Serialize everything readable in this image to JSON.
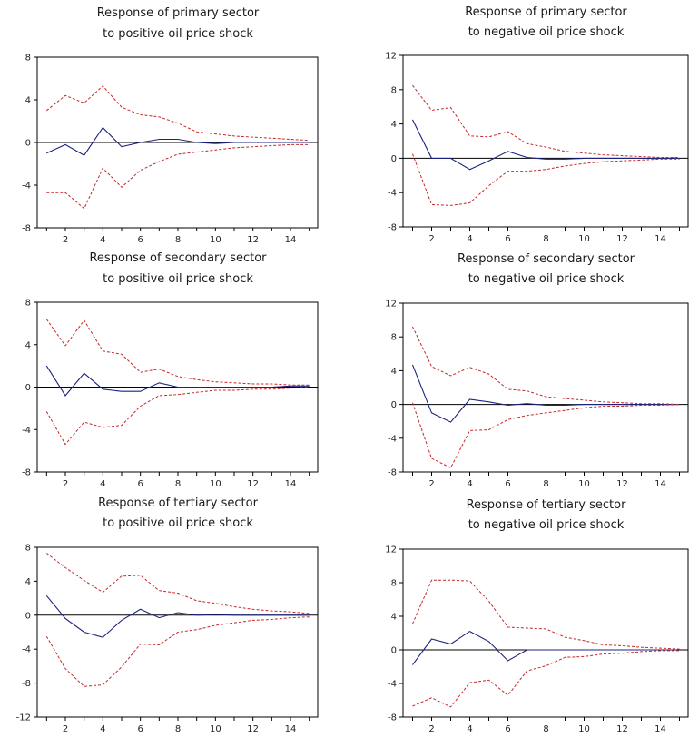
{
  "chart_data": [
    {
      "type": "line",
      "title": [
        "Response of primary sector",
        "to positive oil price shock"
      ],
      "x": [
        1,
        2,
        3,
        4,
        5,
        6,
        7,
        8,
        9,
        10,
        11,
        12,
        13,
        14,
        15
      ],
      "xticks": [
        2,
        4,
        6,
        8,
        10,
        12,
        14
      ],
      "ylim": [
        -8,
        8
      ],
      "yticks": [
        -8,
        -4,
        0,
        4,
        8
      ],
      "series": [
        {
          "role": "response",
          "values": [
            -1.0,
            -0.2,
            -1.2,
            1.4,
            -0.4,
            0.0,
            0.3,
            0.3,
            0.0,
            -0.1,
            0.0,
            0.0,
            0.0,
            0.0,
            0.0
          ]
        },
        {
          "role": "upper",
          "values": [
            3.0,
            4.4,
            3.7,
            5.3,
            3.3,
            2.6,
            2.4,
            1.8,
            1.0,
            0.8,
            0.6,
            0.5,
            0.4,
            0.3,
            0.2
          ]
        },
        {
          "role": "lower",
          "values": [
            -4.7,
            -4.7,
            -6.2,
            -2.4,
            -4.2,
            -2.6,
            -1.8,
            -1.1,
            -0.9,
            -0.7,
            -0.5,
            -0.4,
            -0.3,
            -0.2,
            -0.2
          ]
        }
      ]
    },
    {
      "type": "line",
      "title": [
        "Response of primary sector",
        "to negative oil price shock"
      ],
      "x": [
        1,
        2,
        3,
        4,
        5,
        6,
        7,
        8,
        9,
        10,
        11,
        12,
        13,
        14,
        15
      ],
      "xticks": [
        2,
        4,
        6,
        8,
        10,
        12,
        14
      ],
      "ylim": [
        -8,
        12
      ],
      "yticks": [
        -8,
        -4,
        0,
        4,
        8,
        12
      ],
      "series": [
        {
          "role": "response",
          "values": [
            4.5,
            0.0,
            0.0,
            -1.3,
            -0.3,
            0.8,
            0.1,
            -0.1,
            -0.1,
            0.0,
            0.0,
            0.0,
            0.0,
            0.0,
            0.0
          ]
        },
        {
          "role": "upper",
          "values": [
            8.5,
            5.6,
            5.9,
            2.6,
            2.5,
            3.1,
            1.7,
            1.3,
            0.8,
            0.6,
            0.4,
            0.3,
            0.2,
            0.1,
            0.1
          ]
        },
        {
          "role": "lower",
          "values": [
            0.5,
            -5.4,
            -5.5,
            -5.2,
            -3.2,
            -1.5,
            -1.5,
            -1.3,
            -0.9,
            -0.6,
            -0.4,
            -0.3,
            -0.2,
            -0.1,
            -0.1
          ]
        }
      ]
    },
    {
      "type": "line",
      "title": [
        "Response of secondary sector",
        "to positive oil price shock"
      ],
      "x": [
        1,
        2,
        3,
        4,
        5,
        6,
        7,
        8,
        9,
        10,
        11,
        12,
        13,
        14,
        15
      ],
      "xticks": [
        2,
        4,
        6,
        8,
        10,
        12,
        14
      ],
      "ylim": [
        -8,
        8
      ],
      "yticks": [
        -8,
        -4,
        0,
        4,
        8
      ],
      "series": [
        {
          "role": "response",
          "values": [
            2.0,
            -0.8,
            1.3,
            -0.2,
            -0.4,
            -0.4,
            0.4,
            0.0,
            0.0,
            0.0,
            0.0,
            0.0,
            0.0,
            0.1,
            0.1
          ]
        },
        {
          "role": "upper",
          "values": [
            6.4,
            3.9,
            6.3,
            3.4,
            3.1,
            1.4,
            1.7,
            1.0,
            0.7,
            0.5,
            0.4,
            0.3,
            0.3,
            0.2,
            0.2
          ]
        },
        {
          "role": "lower",
          "values": [
            -2.3,
            -5.4,
            -3.3,
            -3.8,
            -3.6,
            -1.8,
            -0.8,
            -0.7,
            -0.5,
            -0.3,
            -0.3,
            -0.2,
            -0.2,
            -0.1,
            0.0
          ]
        }
      ]
    },
    {
      "type": "line",
      "title": [
        "Response of secondary sector",
        "to negative oil price shock"
      ],
      "x": [
        1,
        2,
        3,
        4,
        5,
        6,
        7,
        8,
        9,
        10,
        11,
        12,
        13,
        14,
        15
      ],
      "xticks": [
        2,
        4,
        6,
        8,
        10,
        12,
        14
      ],
      "ylim": [
        -8,
        12
      ],
      "yticks": [
        -8,
        -4,
        0,
        4,
        8,
        12
      ],
      "series": [
        {
          "role": "response",
          "values": [
            4.7,
            -1.0,
            -2.1,
            0.6,
            0.3,
            -0.1,
            0.1,
            -0.1,
            -0.1,
            0.0,
            0.0,
            0.0,
            0.0,
            0.0,
            0.0
          ]
        },
        {
          "role": "upper",
          "values": [
            9.2,
            4.5,
            3.4,
            4.4,
            3.6,
            1.8,
            1.6,
            0.9,
            0.7,
            0.5,
            0.3,
            0.2,
            0.1,
            0.1,
            0.0
          ]
        },
        {
          "role": "lower",
          "values": [
            0.2,
            -6.4,
            -7.5,
            -3.1,
            -3.0,
            -1.8,
            -1.3,
            -1.0,
            -0.7,
            -0.4,
            -0.2,
            -0.2,
            -0.1,
            -0.1,
            0.0
          ]
        }
      ]
    },
    {
      "type": "line",
      "title": [
        "Response of tertiary sector",
        "to positive oil price shock"
      ],
      "x": [
        1,
        2,
        3,
        4,
        5,
        6,
        7,
        8,
        9,
        10,
        11,
        12,
        13,
        14,
        15
      ],
      "xticks": [
        2,
        4,
        6,
        8,
        10,
        12,
        14
      ],
      "ylim": [
        -12,
        8
      ],
      "yticks": [
        -12,
        -8,
        -4,
        0,
        4,
        8
      ],
      "series": [
        {
          "role": "response",
          "values": [
            2.3,
            -0.4,
            -2.0,
            -2.6,
            -0.6,
            0.7,
            -0.3,
            0.3,
            0.0,
            0.1,
            0.0,
            0.0,
            0.0,
            0.0,
            0.0
          ]
        },
        {
          "role": "upper",
          "values": [
            7.3,
            5.6,
            4.1,
            2.7,
            4.6,
            4.7,
            2.9,
            2.6,
            1.7,
            1.4,
            1.0,
            0.7,
            0.5,
            0.4,
            0.2
          ]
        },
        {
          "role": "lower",
          "values": [
            -2.5,
            -6.3,
            -8.4,
            -8.2,
            -6.1,
            -3.4,
            -3.5,
            -2.0,
            -1.7,
            -1.2,
            -0.9,
            -0.6,
            -0.5,
            -0.3,
            -0.2
          ]
        }
      ]
    },
    {
      "type": "line",
      "title": [
        "Response of tertiary sector",
        "to negative oil price shock"
      ],
      "x": [
        1,
        2,
        3,
        4,
        5,
        6,
        7,
        8,
        9,
        10,
        11,
        12,
        13,
        14,
        15
      ],
      "xticks": [
        2,
        4,
        6,
        8,
        10,
        12,
        14
      ],
      "ylim": [
        -8,
        12
      ],
      "yticks": [
        -8,
        -4,
        0,
        4,
        8,
        12
      ],
      "series": [
        {
          "role": "response",
          "values": [
            -1.8,
            1.3,
            0.7,
            2.2,
            1.0,
            -1.3,
            0.0,
            0.0,
            0.0,
            0.0,
            0.0,
            0.0,
            0.0,
            0.0,
            0.0
          ]
        },
        {
          "role": "upper",
          "values": [
            3.1,
            8.3,
            8.3,
            8.2,
            5.8,
            2.7,
            2.6,
            2.5,
            1.5,
            1.1,
            0.6,
            0.5,
            0.3,
            0.2,
            0.1
          ]
        },
        {
          "role": "lower",
          "values": [
            -6.7,
            -5.7,
            -6.8,
            -3.9,
            -3.6,
            -5.4,
            -2.5,
            -1.9,
            -0.9,
            -0.8,
            -0.5,
            -0.4,
            -0.2,
            -0.1,
            -0.1
          ]
        }
      ]
    }
  ]
}
